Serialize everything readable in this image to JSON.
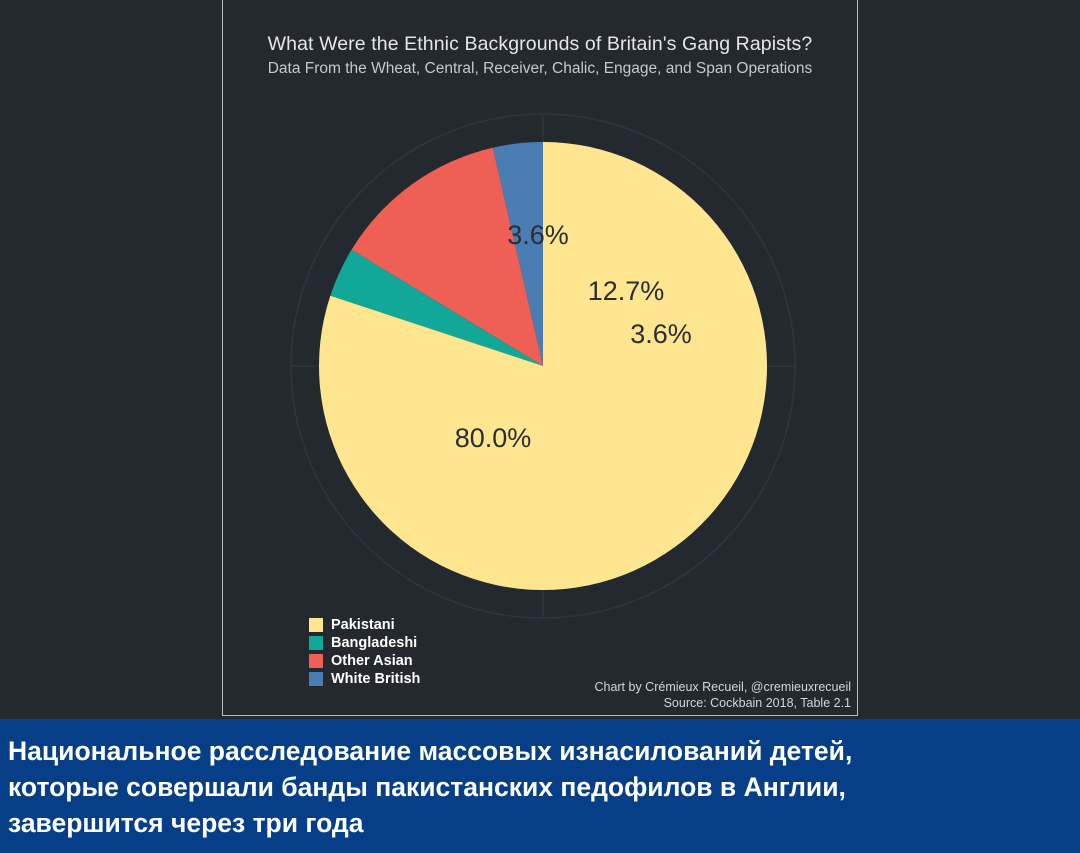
{
  "chart_data": {
    "type": "pie",
    "title": "What Were the Ethnic Backgrounds of Britain's Gang Rapists?",
    "subtitle": "Data From the Wheat, Central, Receiver, Chalic, Engage, and Span Operations",
    "categories": [
      "Pakistani",
      "Bangladeshi",
      "Other Asian",
      "White British"
    ],
    "values": [
      80.0,
      3.6,
      12.7,
      3.6
    ],
    "labels": [
      "80.0%",
      "3.6%",
      "12.7%",
      "3.6%"
    ],
    "colors": [
      "#fde68f",
      "#11a899",
      "#ee6055",
      "#4a7db2"
    ],
    "legend_placement": "bottom-left",
    "grid": true
  },
  "credit": {
    "author": "Chart by Crémieux Recueil, @cremieuxrecueil",
    "source": "Source: Cockbain 2018, Table 2.1"
  },
  "banner": {
    "lines": [
      "Национальное расследование массовых изнасилований детей,",
      "которые совершали банды пакистанских педофилов в Англии,",
      "завершится через три года"
    ]
  }
}
